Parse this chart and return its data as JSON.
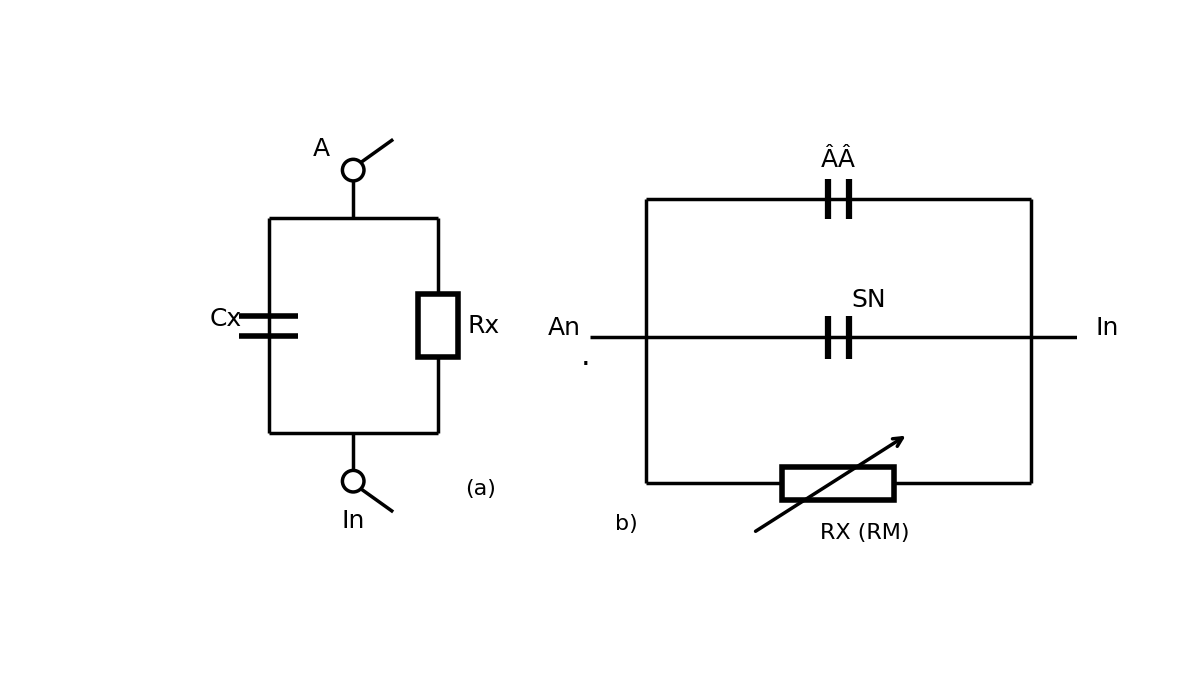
{
  "bg_color": "#ffffff",
  "line_color": "#000000",
  "line_width": 2.5,
  "fig_width": 12.0,
  "fig_height": 6.86,
  "labels": {
    "a_label": "A",
    "in_label_a": "In",
    "cx_label": "Cx",
    "rx_label": "Rx",
    "a_paren": "(a)",
    "an_label": "An",
    "in_label_b": "In",
    "sn_label": "SN",
    "aa_label": "ÂÂ",
    "b_label": "b)",
    "rx_rm_label": "RX (RM)"
  }
}
